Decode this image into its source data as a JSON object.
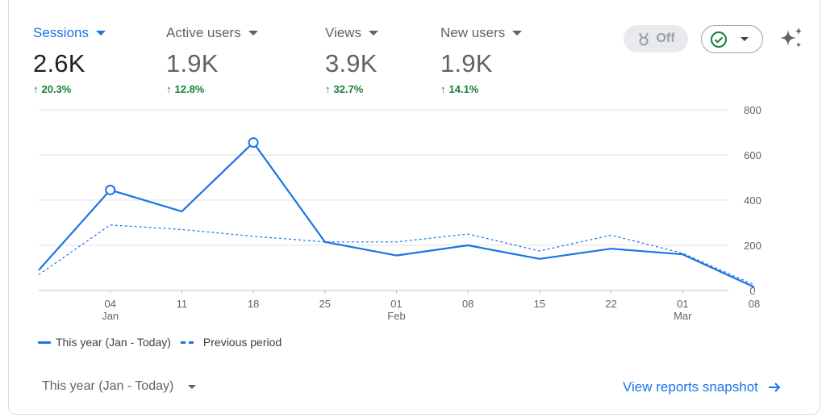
{
  "metrics": [
    {
      "label": "Sessions",
      "value": "2.6K",
      "delta": "20.3%",
      "active": true
    },
    {
      "label": "Active users",
      "value": "1.9K",
      "delta": "12.8%",
      "active": false
    },
    {
      "label": "Views",
      "value": "3.9K",
      "delta": "32.7%",
      "active": false
    },
    {
      "label": "New users",
      "value": "1.9K",
      "delta": "14.1%",
      "active": false
    }
  ],
  "controls": {
    "off_label": "Off",
    "range_label": "This year (Jan - Today)",
    "view_link": "View reports snapshot"
  },
  "legend": {
    "current": "This year (Jan - Today)",
    "previous": "Previous period"
  },
  "colors": {
    "accent": "#1a73e8",
    "positive": "#188038",
    "grid": "#e0e0e0"
  },
  "chart_data": {
    "type": "line",
    "ylim": [
      0,
      800
    ],
    "y_ticks": [
      "800",
      "600",
      "400",
      "200",
      "0"
    ],
    "x_ticks": [
      {
        "day": "04",
        "month": "Jan",
        "index": 1
      },
      {
        "day": "11",
        "month": "",
        "index": 2
      },
      {
        "day": "18",
        "month": "",
        "index": 3
      },
      {
        "day": "25",
        "month": "",
        "index": 4
      },
      {
        "day": "01",
        "month": "Feb",
        "index": 5
      },
      {
        "day": "08",
        "month": "",
        "index": 6
      },
      {
        "day": "15",
        "month": "",
        "index": 7
      },
      {
        "day": "22",
        "month": "",
        "index": 8
      },
      {
        "day": "01",
        "month": "Mar",
        "index": 9
      },
      {
        "day": "08",
        "month": "",
        "index": 10
      }
    ],
    "series": [
      {
        "name": "This year (Jan - Today)",
        "style": "solid",
        "x": [
          0,
          1,
          2,
          3,
          4,
          5,
          6,
          7,
          8,
          9,
          10
        ],
        "values": [
          90,
          445,
          350,
          655,
          215,
          155,
          200,
          140,
          185,
          160,
          15
        ],
        "markers": [
          1,
          3
        ]
      },
      {
        "name": "Previous period",
        "style": "dashed",
        "x": [
          0,
          1,
          2,
          3,
          4,
          5,
          6,
          7,
          8,
          9,
          10
        ],
        "values": [
          70,
          290,
          270,
          240,
          215,
          215,
          250,
          175,
          245,
          165,
          25
        ]
      }
    ]
  }
}
